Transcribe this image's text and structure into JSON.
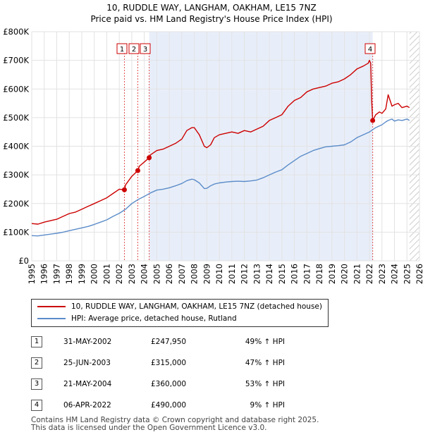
{
  "title": "10, RUDDLE WAY, LANGHAM, OAKHAM, LE15 7NZ",
  "subtitle": "Price paid vs. HM Land Registry's House Price Index (HPI)",
  "chart_data": {
    "type": "line",
    "title": "10, RUDDLE WAY, LANGHAM, OAKHAM, LE15 7NZ",
    "subtitle": "Price paid vs. HM Land Registry's House Price Index (HPI)",
    "xlim": [
      1995,
      2026
    ],
    "ylim": [
      0,
      800000
    ],
    "x_ticks": [
      1995,
      1996,
      1997,
      1998,
      1999,
      2000,
      2001,
      2002,
      2003,
      2004,
      2005,
      2006,
      2007,
      2008,
      2009,
      2010,
      2011,
      2012,
      2013,
      2014,
      2015,
      2016,
      2017,
      2018,
      2019,
      2020,
      2021,
      2022,
      2023,
      2024,
      2025,
      2026
    ],
    "x_tick_labels": [
      "1995",
      "1996",
      "1997",
      "1998",
      "1999",
      "2000",
      "2001",
      "2002",
      "2003",
      "2004",
      "2005",
      "2006",
      "2007",
      "2008",
      "2009",
      "2010",
      "2011",
      "2012",
      "2013",
      "2014",
      "2015",
      "2016",
      "2017",
      "2018",
      "2019",
      "2020",
      "2021",
      "2022",
      "2023",
      "2024",
      "2025",
      "2026"
    ],
    "y_ticks": [
      0,
      100000,
      200000,
      300000,
      400000,
      500000,
      600000,
      700000,
      800000
    ],
    "y_tick_labels": [
      "£0",
      "£100K",
      "£200K",
      "£300K",
      "£400K",
      "£500K",
      "£600K",
      "£700K",
      "£800K"
    ],
    "grid": true,
    "legend_position": "below",
    "shaded_period": [
      2004.39,
      2022.26
    ],
    "hatched_after": 2025.2,
    "series": [
      {
        "name": "10, RUDDLE WAY, LANGHAM, OAKHAM, LE15 7NZ (detached house)",
        "color": "#cc0000",
        "x": [
          1995.0,
          1995.5,
          1996.0,
          1996.5,
          1997.0,
          1997.5,
          1998.0,
          1998.5,
          1999.0,
          1999.5,
          2000.0,
          2000.5,
          2001.0,
          2001.5,
          2002.0,
          2002.41,
          2002.5,
          2003.0,
          2003.48,
          2003.6,
          2004.0,
          2004.39,
          2004.5,
          2005.0,
          2005.5,
          2006.0,
          2006.5,
          2007.0,
          2007.4,
          2007.8,
          2008.0,
          2008.4,
          2008.8,
          2009.0,
          2009.3,
          2009.6,
          2010.0,
          2010.5,
          2011.0,
          2011.5,
          2012.0,
          2012.5,
          2013.0,
          2013.5,
          2014.0,
          2014.5,
          2015.0,
          2015.5,
          2016.0,
          2016.5,
          2017.0,
          2017.5,
          2018.0,
          2018.5,
          2019.0,
          2019.5,
          2020.0,
          2020.5,
          2021.0,
          2021.5,
          2021.9,
          2022.0,
          2022.1,
          2022.18,
          2022.26,
          2022.5,
          2022.8,
          2023.0,
          2023.3,
          2023.5,
          2023.8,
          2024.0,
          2024.3,
          2024.6,
          2025.0,
          2025.2
        ],
        "y": [
          130000,
          128000,
          135000,
          140000,
          145000,
          155000,
          165000,
          170000,
          180000,
          190000,
          200000,
          210000,
          220000,
          235000,
          250000,
          247950,
          265000,
          295000,
          315000,
          330000,
          345000,
          360000,
          370000,
          385000,
          390000,
          400000,
          410000,
          425000,
          455000,
          465000,
          465000,
          440000,
          400000,
          395000,
          405000,
          430000,
          440000,
          445000,
          450000,
          445000,
          455000,
          450000,
          460000,
          470000,
          490000,
          500000,
          510000,
          540000,
          560000,
          570000,
          590000,
          600000,
          605000,
          610000,
          620000,
          625000,
          635000,
          650000,
          670000,
          680000,
          690000,
          700000,
          690000,
          560000,
          490000,
          510000,
          520000,
          515000,
          530000,
          580000,
          540000,
          545000,
          550000,
          535000,
          540000,
          535000
        ]
      },
      {
        "name": "HPI: Average price, detached house, Rutland",
        "color": "#5b8cc9",
        "x": [
          1995.0,
          1995.5,
          1996.0,
          1996.5,
          1997.0,
          1997.5,
          1998.0,
          1998.5,
          1999.0,
          1999.5,
          2000.0,
          2000.5,
          2001.0,
          2001.5,
          2002.0,
          2002.5,
          2003.0,
          2003.5,
          2004.0,
          2004.5,
          2005.0,
          2005.5,
          2006.0,
          2006.5,
          2007.0,
          2007.4,
          2007.8,
          2008.0,
          2008.4,
          2008.8,
          2009.0,
          2009.3,
          2009.6,
          2010.0,
          2010.5,
          2011.0,
          2011.5,
          2012.0,
          2012.5,
          2013.0,
          2013.5,
          2014.0,
          2014.5,
          2015.0,
          2015.5,
          2016.0,
          2016.5,
          2017.0,
          2017.5,
          2018.0,
          2018.5,
          2019.0,
          2019.5,
          2020.0,
          2020.5,
          2021.0,
          2021.5,
          2022.0,
          2022.5,
          2023.0,
          2023.3,
          2023.5,
          2023.8,
          2024.0,
          2024.3,
          2024.6,
          2025.0,
          2025.2
        ],
        "y": [
          88000,
          87000,
          90000,
          93000,
          96000,
          100000,
          105000,
          110000,
          115000,
          120000,
          127000,
          135000,
          143000,
          155000,
          166000,
          180000,
          200000,
          214000,
          225000,
          237000,
          247000,
          250000,
          255000,
          262000,
          270000,
          280000,
          285000,
          283000,
          272000,
          252000,
          253000,
          262000,
          268000,
          272000,
          275000,
          277000,
          278000,
          277000,
          279000,
          282000,
          290000,
          300000,
          310000,
          318000,
          335000,
          350000,
          365000,
          375000,
          385000,
          392000,
          398000,
          400000,
          402000,
          405000,
          415000,
          430000,
          440000,
          450000,
          465000,
          475000,
          485000,
          490000,
          495000,
          488000,
          492000,
          490000,
          495000,
          490000
        ]
      }
    ],
    "transactions": [
      {
        "label": "1",
        "date": "31-MAY-2002",
        "x": 2002.41,
        "price": 247950,
        "hpi_change": "49% ↑ HPI"
      },
      {
        "label": "2",
        "date": "25-JUN-2003",
        "x": 2003.48,
        "price": 315000,
        "hpi_change": "47% ↑ HPI"
      },
      {
        "label": "3",
        "date": "21-MAY-2004",
        "x": 2004.39,
        "price": 360000,
        "hpi_change": "53% ↑ HPI"
      },
      {
        "label": "4",
        "date": "06-APR-2022",
        "x": 2022.26,
        "price": 490000,
        "hpi_change": "9% ↑ HPI"
      }
    ]
  },
  "legend": {
    "items": [
      {
        "label": "10, RUDDLE WAY, LANGHAM, OAKHAM, LE15 7NZ (detached house)",
        "color": "#cc0000"
      },
      {
        "label": "HPI: Average price, detached house, Rutland",
        "color": "#5b8cc9"
      }
    ]
  },
  "table": {
    "rows": [
      {
        "num": "1",
        "date": "31-MAY-2002",
        "price": "£247,950",
        "hpi": "49% ↑ HPI"
      },
      {
        "num": "2",
        "date": "25-JUN-2003",
        "price": "£315,000",
        "hpi": "47% ↑ HPI"
      },
      {
        "num": "3",
        "date": "21-MAY-2004",
        "price": "£360,000",
        "hpi": "53% ↑ HPI"
      },
      {
        "num": "4",
        "date": "06-APR-2022",
        "price": "£490,000",
        "hpi": "9% ↑ HPI"
      }
    ]
  },
  "footer": {
    "line1": "Contains HM Land Registry data © Crown copyright and database right 2025.",
    "line2": "This data is licensed under the Open Government Licence v3.0."
  }
}
